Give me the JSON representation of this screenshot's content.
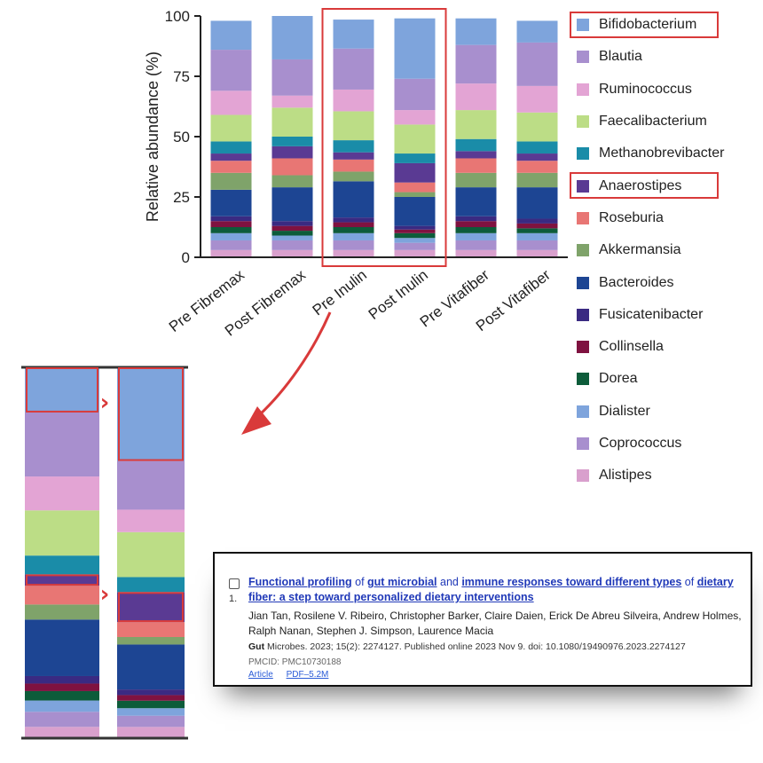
{
  "chart_data": [
    {
      "type": "stacked_bar",
      "ylabel": "Relative abundance (%)",
      "ylim": [
        0,
        100
      ],
      "yticks": [
        "0",
        "25",
        "50",
        "75",
        "100"
      ],
      "categories": [
        "Pre Fibremax",
        "Post Fibremax",
        "Pre Inulin",
        "Post Inulin",
        "Pre Vitafiber",
        "Post Vitafiber"
      ],
      "grid": false,
      "legend_position": "right",
      "series": [
        {
          "name": "Alistipes",
          "color": "#d9a0cd",
          "values": [
            3,
            3,
            3,
            3,
            3,
            3
          ]
        },
        {
          "name": "Coprococcus",
          "color": "#a88fce",
          "values": [
            4,
            4,
            4,
            3,
            4,
            4
          ]
        },
        {
          "name": "Dialister",
          "color": "#7ea4dc",
          "values": [
            3,
            2,
            3,
            2,
            3,
            3
          ]
        },
        {
          "name": "Dorea",
          "color": "#0d5c3a",
          "values": [
            2.5,
            2,
            2.5,
            2,
            2.5,
            2
          ]
        },
        {
          "name": "Collinsella",
          "color": "#7f1240",
          "values": [
            2.5,
            2,
            2,
            1.5,
            2.5,
            2
          ]
        },
        {
          "name": "Fusicatenibacter",
          "color": "#3a2a82",
          "values": [
            2,
            2,
            2,
            1.5,
            2,
            2
          ]
        },
        {
          "name": "Bacteroides",
          "color": "#1d4593",
          "values": [
            11,
            14,
            15,
            12,
            12,
            13
          ]
        },
        {
          "name": "Akkermansia",
          "color": "#7fa36a",
          "values": [
            7,
            5,
            4,
            2,
            6,
            6
          ]
        },
        {
          "name": "Roseburia",
          "color": "#e87674",
          "values": [
            5,
            7,
            5,
            4,
            6,
            5
          ]
        },
        {
          "name": "Anaerostipes",
          "color": "#5a3a93",
          "values": [
            3,
            5,
            3,
            8,
            3,
            3
          ]
        },
        {
          "name": "Methanobrevibacter",
          "color": "#1a8ca8",
          "values": [
            5,
            4,
            5,
            4,
            5,
            5
          ]
        },
        {
          "name": "Faecalibacterium",
          "color": "#bcdd86",
          "values": [
            11,
            12,
            12,
            12,
            12,
            12
          ]
        },
        {
          "name": "Ruminococcus",
          "color": "#e3a4d4",
          "values": [
            10,
            5,
            9,
            6,
            11,
            11
          ]
        },
        {
          "name": "Blautia",
          "color": "#a88fce",
          "values": [
            17,
            15,
            17,
            13,
            16,
            18
          ]
        },
        {
          "name": "Bifidobacterium",
          "color": "#7ea4dc",
          "values": [
            12,
            18,
            12,
            25,
            11,
            9
          ]
        }
      ],
      "highlight": {
        "categories": [
          "Pre Inulin",
          "Post Inulin"
        ],
        "legend_entries": [
          "Bifidobacterium",
          "Anaerostipes"
        ],
        "color": "#d93a3a"
      }
    },
    {
      "type": "stacked_bar",
      "role": "zoomed detail of Pre Inulin vs Post Inulin",
      "categories": [
        "Pre Inulin",
        "Post Inulin"
      ],
      "highlighted_series": [
        "Bifidobacterium",
        "Anaerostipes"
      ],
      "arrow_marker": "›"
    }
  ],
  "legend": [
    "Bifidobacterium",
    "Blautia",
    "Ruminococcus",
    "Faecalibacterium",
    "Methanobrevibacter",
    "Anaerostipes",
    "Roseburia",
    "Akkermansia",
    "Bacteroides",
    "Fusicatenibacter",
    "Collinsella",
    "Dorea",
    "Dialister",
    "Coprococcus",
    "Alistipes"
  ],
  "reference": {
    "index": "1.",
    "title_parts": [
      {
        "text": "Functional profiling",
        "hl": true
      },
      {
        "text": " of ",
        "hl": false
      },
      {
        "text": "gut microbial",
        "hl": true
      },
      {
        "text": " and ",
        "hl": false
      },
      {
        "text": "immune responses toward different types",
        "hl": true
      },
      {
        "text": " of ",
        "hl": false
      },
      {
        "text": "dietary fiber",
        "hl": true
      },
      {
        "text": ": a step toward personalized dietary interventions",
        "hl": false
      }
    ],
    "authors": "Jian Tan, Rosilene V. Ribeiro, Christopher Barker, Claire Daien, Erick De Abreu Silveira, Andrew Holmes, Ralph Nanan, Stephen J. Simpson, Laurence Macia",
    "journal_bold": "Gut",
    "journal_rest": " Microbes. 2023; 15(2): 2274127. Published online 2023 Nov 9. doi: 10.1080/19490976.2023.2274127",
    "pmcid": "PMCID: PMC10730188",
    "links": [
      "Article",
      "PDF–5.2M"
    ]
  }
}
